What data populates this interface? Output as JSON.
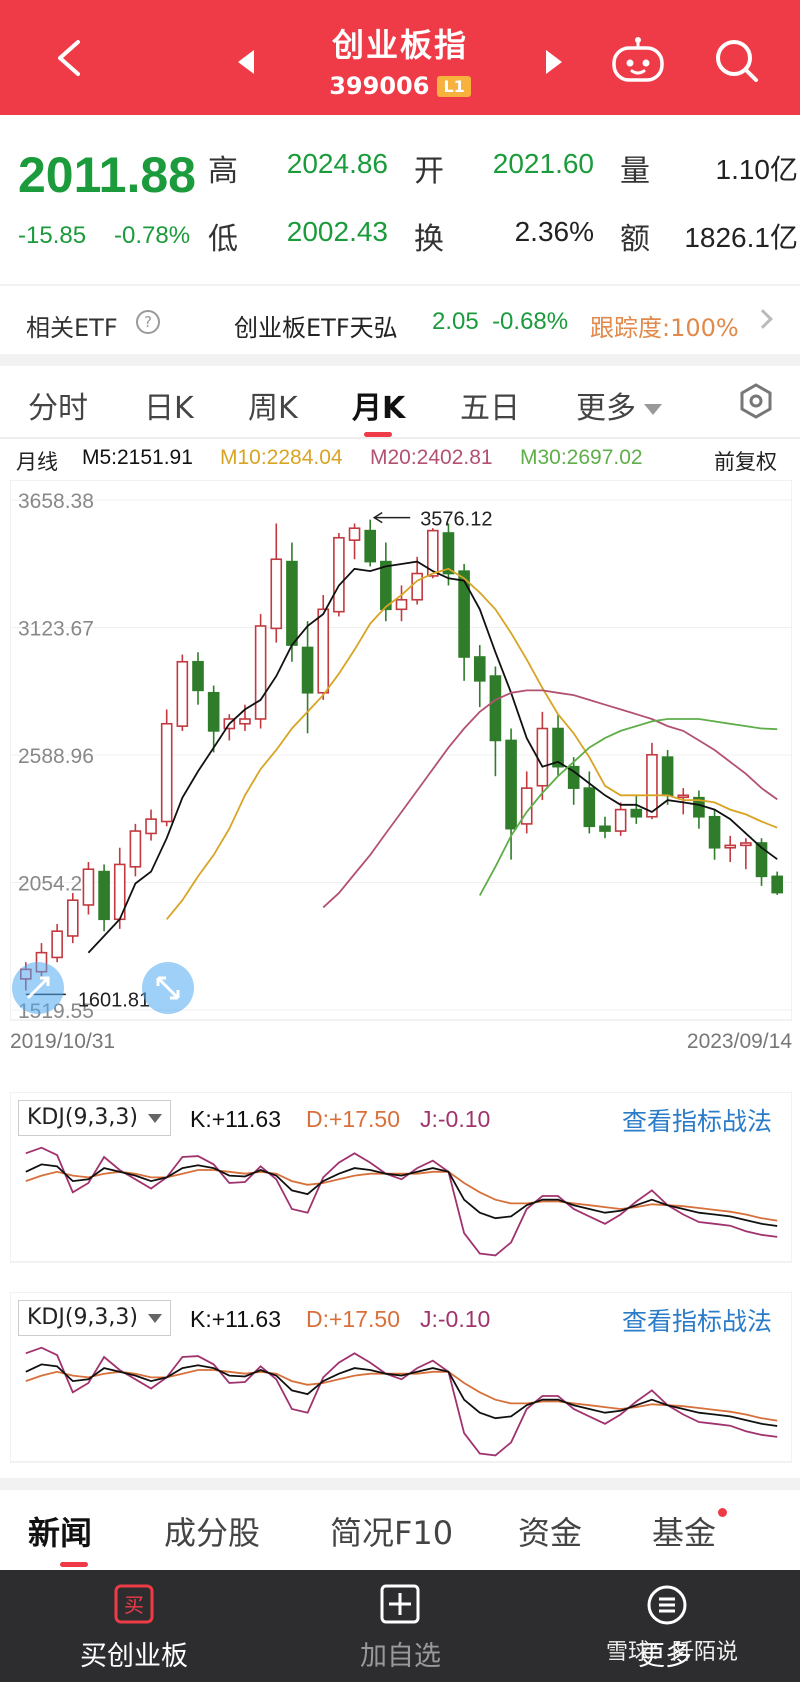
{
  "header": {
    "title": "创业板指",
    "code": "399006",
    "level": "L1"
  },
  "quote": {
    "price": "2011.88",
    "change": "-15.85",
    "change_pct": "-0.78%",
    "high_label": "高",
    "high": "2024.86",
    "open_label": "开",
    "open": "2021.60",
    "vol_label": "量",
    "volume": "1.10亿",
    "low_label": "低",
    "low": "2002.43",
    "turnover_label": "换",
    "turnover": "2.36%",
    "amount_label": "额",
    "amount": "1826.1亿"
  },
  "etf": {
    "label": "相关ETF",
    "help": "?",
    "name": "创业板ETF天弘",
    "price": "2.05",
    "change_pct": "-0.68%",
    "tracking": "跟踪度:100%"
  },
  "tabs": [
    "分时",
    "日K",
    "周K",
    "月K",
    "五日",
    "更多"
  ],
  "active_tab": "月K",
  "ma": {
    "label": "月线",
    "m5": "M5:2151.91",
    "m10": "M10:2284.04",
    "m20": "M20:2402.81",
    "m30": "M30:2697.02",
    "adjust": "前复权"
  },
  "chart": {
    "y_ticks": [
      "3658.38",
      "3123.67",
      "2588.96",
      "2054.26",
      "1519.55"
    ],
    "high_marker": "3576.12",
    "low_marker": "1601.81",
    "start_date": "2019/10/31",
    "end_date": "2023/09/14"
  },
  "chart_data": {
    "type": "candlestick",
    "period": "monthly",
    "ylim": [
      1519.55,
      3658.38
    ],
    "candles": [
      {
        "o": 1650,
        "c": 1690,
        "h": 1720,
        "l": 1601.81
      },
      {
        "o": 1680,
        "c": 1760,
        "h": 1800,
        "l": 1660
      },
      {
        "o": 1740,
        "c": 1850,
        "h": 1880,
        "l": 1720
      },
      {
        "o": 1830,
        "c": 1980,
        "h": 2010,
        "l": 1800
      },
      {
        "o": 1960,
        "c": 2110,
        "h": 2140,
        "l": 1920
      },
      {
        "o": 2100,
        "c": 1900,
        "h": 2130,
        "l": 1850
      },
      {
        "o": 1900,
        "c": 2130,
        "h": 2200,
        "l": 1860
      },
      {
        "o": 2120,
        "c": 2270,
        "h": 2300,
        "l": 2080
      },
      {
        "o": 2260,
        "c": 2320,
        "h": 2360,
        "l": 2230
      },
      {
        "o": 2310,
        "c": 2720,
        "h": 2780,
        "l": 2290
      },
      {
        "o": 2710,
        "c": 2980,
        "h": 3010,
        "l": 2690
      },
      {
        "o": 2980,
        "c": 2860,
        "h": 3020,
        "l": 2800
      },
      {
        "o": 2850,
        "c": 2690,
        "h": 2880,
        "l": 2600
      },
      {
        "o": 2700,
        "c": 2740,
        "h": 2760,
        "l": 2650
      },
      {
        "o": 2720,
        "c": 2740,
        "h": 2800,
        "l": 2690
      },
      {
        "o": 2740,
        "c": 3130,
        "h": 3180,
        "l": 2700
      },
      {
        "o": 3120,
        "c": 3410,
        "h": 3560,
        "l": 3060
      },
      {
        "o": 3400,
        "c": 3050,
        "h": 3480,
        "l": 2980
      },
      {
        "o": 3040,
        "c": 2850,
        "h": 3150,
        "l": 2680
      },
      {
        "o": 2850,
        "c": 3200,
        "h": 3260,
        "l": 2820
      },
      {
        "o": 3190,
        "c": 3500,
        "h": 3520,
        "l": 3170
      },
      {
        "o": 3490,
        "c": 3540,
        "h": 3560,
        "l": 3410
      },
      {
        "o": 3530,
        "c": 3400,
        "h": 3576.12,
        "l": 3380
      },
      {
        "o": 3400,
        "c": 3200,
        "h": 3480,
        "l": 3150
      },
      {
        "o": 3200,
        "c": 3240,
        "h": 3300,
        "l": 3150
      },
      {
        "o": 3240,
        "c": 3350,
        "h": 3420,
        "l": 3220
      },
      {
        "o": 3340,
        "c": 3530,
        "h": 3540,
        "l": 3330
      },
      {
        "o": 3520,
        "c": 3350,
        "h": 3560,
        "l": 3300
      },
      {
        "o": 3360,
        "c": 3000,
        "h": 3390,
        "l": 2900
      },
      {
        "o": 3000,
        "c": 2900,
        "h": 3050,
        "l": 2790
      },
      {
        "o": 2920,
        "c": 2650,
        "h": 2960,
        "l": 2500
      },
      {
        "o": 2650,
        "c": 2280,
        "h": 2700,
        "l": 2150
      },
      {
        "o": 2300,
        "c": 2450,
        "h": 2520,
        "l": 2260
      },
      {
        "o": 2460,
        "c": 2700,
        "h": 2770,
        "l": 2400
      },
      {
        "o": 2700,
        "c": 2540,
        "h": 2760,
        "l": 2500
      },
      {
        "o": 2540,
        "c": 2450,
        "h": 2580,
        "l": 2380
      },
      {
        "o": 2450,
        "c": 2290,
        "h": 2520,
        "l": 2260
      },
      {
        "o": 2290,
        "c": 2270,
        "h": 2330,
        "l": 2240
      },
      {
        "o": 2270,
        "c": 2360,
        "h": 2390,
        "l": 2250
      },
      {
        "o": 2360,
        "c": 2330,
        "h": 2420,
        "l": 2300
      },
      {
        "o": 2330,
        "c": 2590,
        "h": 2640,
        "l": 2320
      },
      {
        "o": 2580,
        "c": 2420,
        "h": 2610,
        "l": 2380
      },
      {
        "o": 2420,
        "c": 2420,
        "h": 2450,
        "l": 2340
      },
      {
        "o": 2410,
        "c": 2330,
        "h": 2440,
        "l": 2280
      },
      {
        "o": 2330,
        "c": 2200,
        "h": 2360,
        "l": 2150
      },
      {
        "o": 2200,
        "c": 2210,
        "h": 2250,
        "l": 2140
      },
      {
        "o": 2210,
        "c": 2220,
        "h": 2240,
        "l": 2110
      },
      {
        "o": 2220,
        "c": 2080,
        "h": 2240,
        "l": 2040
      },
      {
        "o": 2080,
        "c": 2011.88,
        "h": 2100,
        "l": 2002.43
      }
    ],
    "ma_series": [
      {
        "name": "M5",
        "color": "#111111",
        "values": [
          null,
          null,
          null,
          null,
          1760,
          1830,
          1900,
          2050,
          2100,
          2240,
          2410,
          2520,
          2620,
          2720,
          2780,
          2820,
          2920,
          3050,
          3130,
          3180,
          3300,
          3370,
          3360,
          3380,
          3390,
          3400,
          3360,
          3330,
          3320,
          3200,
          3020,
          2850,
          2660,
          2540,
          2560,
          2520,
          2470,
          2420,
          2380,
          2380,
          2350,
          2400,
          2390,
          2380,
          2360,
          2320,
          2260,
          2200,
          2151.91
        ]
      },
      {
        "name": "M10",
        "color": "#d8a424",
        "values": [
          null,
          null,
          null,
          null,
          null,
          null,
          null,
          null,
          null,
          1900,
          1980,
          2080,
          2170,
          2280,
          2420,
          2530,
          2610,
          2700,
          2770,
          2840,
          2930,
          3030,
          3140,
          3210,
          3260,
          3320,
          3350,
          3370,
          3330,
          3270,
          3200,
          3100,
          2990,
          2870,
          2760,
          2680,
          2580,
          2460,
          2420,
          2420,
          2420,
          2420,
          2400,
          2400,
          2390,
          2360,
          2340,
          2310,
          2284.04
        ]
      },
      {
        "name": "M20",
        "color": "#b35270",
        "values": [
          null,
          null,
          null,
          null,
          null,
          null,
          null,
          null,
          null,
          null,
          null,
          null,
          null,
          null,
          null,
          null,
          null,
          null,
          null,
          1950,
          2010,
          2090,
          2170,
          2260,
          2350,
          2440,
          2530,
          2620,
          2700,
          2770,
          2820,
          2850,
          2860,
          2860,
          2850,
          2840,
          2820,
          2800,
          2780,
          2760,
          2740,
          2710,
          2690,
          2650,
          2610,
          2560,
          2510,
          2450,
          2402.81
        ]
      },
      {
        "name": "M30",
        "color": "#5fae4a",
        "values": [
          null,
          null,
          null,
          null,
          null,
          null,
          null,
          null,
          null,
          null,
          null,
          null,
          null,
          null,
          null,
          null,
          null,
          null,
          null,
          null,
          null,
          null,
          null,
          null,
          null,
          null,
          null,
          null,
          null,
          2000,
          2120,
          2250,
          2350,
          2430,
          2500,
          2560,
          2620,
          2660,
          2690,
          2710,
          2730,
          2740,
          2740,
          2740,
          2730,
          2720,
          2710,
          2700,
          2697.02
        ]
      }
    ]
  },
  "kdj": {
    "selector": "KDJ(9,3,3)",
    "k": "K:+11.63",
    "d": "D:+17.50",
    "j": "J:-0.10",
    "link": "查看指标战法"
  },
  "kdj_data": {
    "K": [
      70,
      78,
      76,
      60,
      62,
      74,
      70,
      66,
      60,
      64,
      74,
      77,
      74,
      66,
      65,
      72,
      66,
      50,
      46,
      60,
      68,
      74,
      72,
      68,
      66,
      70,
      74,
      70,
      40,
      26,
      20,
      22,
      34,
      40,
      40,
      34,
      30,
      26,
      28,
      34,
      40,
      34,
      30,
      26,
      24,
      22,
      18,
      14,
      11.63
    ],
    "D": [
      60,
      66,
      70,
      66,
      64,
      68,
      70,
      68,
      64,
      64,
      68,
      72,
      72,
      70,
      68,
      70,
      68,
      60,
      56,
      58,
      62,
      66,
      68,
      68,
      68,
      68,
      70,
      70,
      58,
      48,
      40,
      36,
      36,
      38,
      38,
      36,
      34,
      32,
      30,
      32,
      35,
      34,
      33,
      31,
      29,
      27,
      24,
      20,
      17.5
    ],
    "J": [
      90,
      96,
      88,
      48,
      58,
      86,
      72,
      62,
      52,
      64,
      86,
      87,
      78,
      58,
      59,
      76,
      62,
      30,
      26,
      64,
      80,
      90,
      80,
      68,
      62,
      74,
      82,
      70,
      4,
      -18,
      -20,
      -6,
      30,
      44,
      44,
      30,
      22,
      14,
      24,
      38,
      50,
      34,
      24,
      16,
      14,
      12,
      6,
      2,
      -0.1
    ],
    "colors": {
      "K": "#111111",
      "D": "#d7703a",
      "J": "#a0336e"
    }
  },
  "bottom_tabs": [
    "新闻",
    "成分股",
    "简况F10",
    "资金",
    "基金"
  ],
  "active_bottom_tab": "新闻",
  "bottom_bar": {
    "buy_icon": "买",
    "buy": "买创业板",
    "add_watch": "加自选",
    "more": "更多",
    "watermark": "雪球：阡陌说"
  }
}
